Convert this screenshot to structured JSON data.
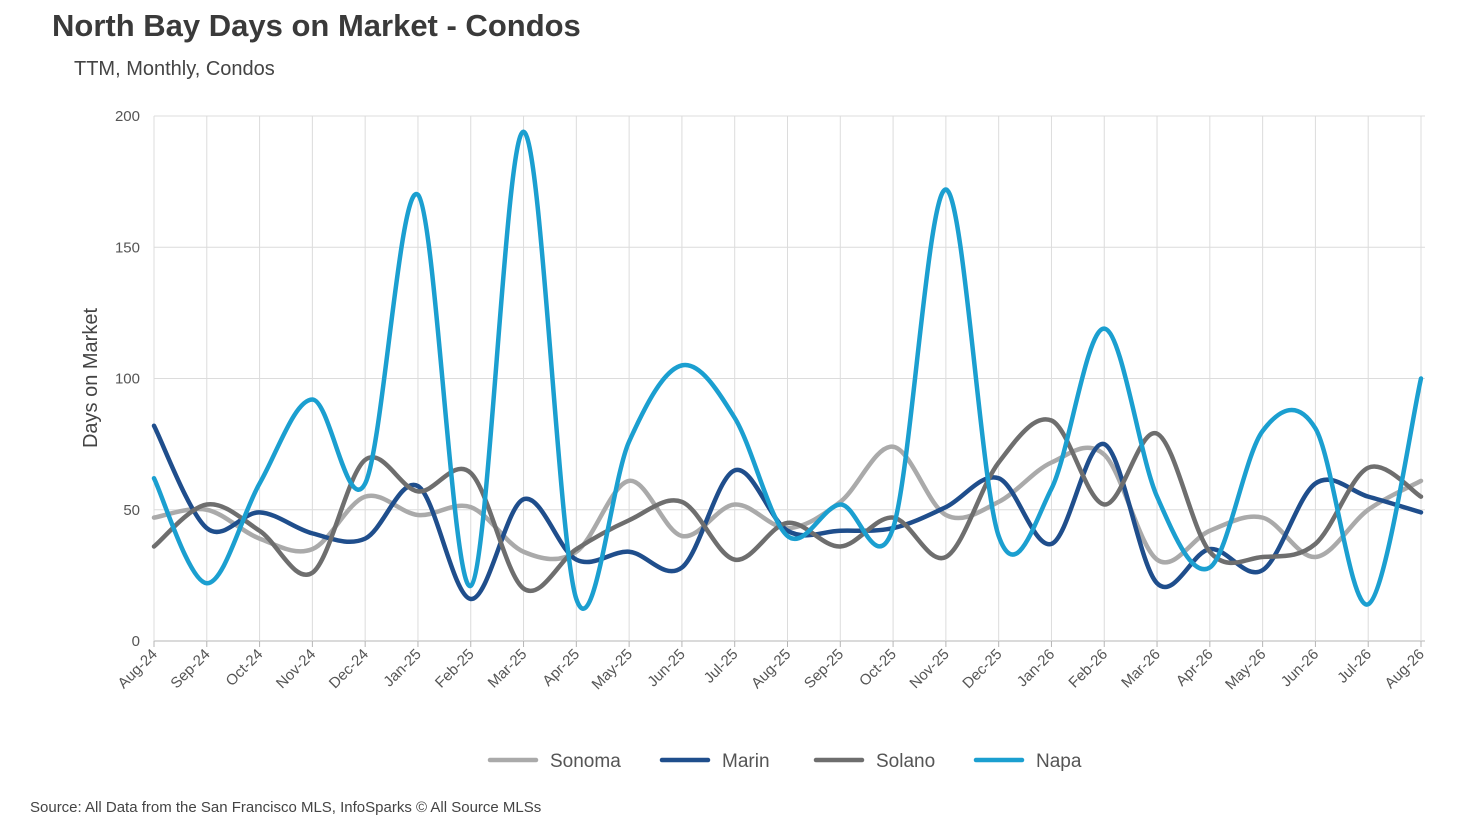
{
  "title": "North Bay Days on Market - Condos",
  "subtitle": "TTM, Monthly, Condos",
  "source": "Source: All Data from the San Francisco MLS, InfoSparks © All Source MLSs",
  "chart_data": {
    "type": "line",
    "ylabel": "Days on Market",
    "xlabel": "",
    "ylim": [
      0,
      200
    ],
    "yticks": [
      0,
      50,
      100,
      150,
      200
    ],
    "grid": true,
    "legend_position": "bottom",
    "categories": [
      "Aug-24",
      "Sep-24",
      "Oct-24",
      "Nov-24",
      "Dec-24",
      "Jan-25",
      "Feb-25",
      "Mar-25",
      "Apr-25",
      "May-25",
      "Jun-25",
      "Jul-25",
      "Aug-25",
      "Sep-25",
      "Oct-25",
      "Nov-25",
      "Dec-25",
      "Jan-26",
      "Feb-26",
      "Mar-26",
      "Apr-26",
      "May-26",
      "Jun-26",
      "Jul-26",
      "Aug-26"
    ],
    "series": [
      {
        "name": "Sonoma",
        "color": "#aaaaaa",
        "values": [
          47,
          50,
          39,
          35,
          55,
          48,
          51,
          34,
          34,
          61,
          40,
          52,
          43,
          53,
          74,
          48,
          53,
          68,
          71,
          31,
          42,
          47,
          32,
          50,
          61
        ]
      },
      {
        "name": "Marin",
        "color": "#1f4e8c",
        "values": [
          82,
          43,
          49,
          41,
          39,
          59,
          16,
          54,
          31,
          34,
          28,
          65,
          42,
          42,
          43,
          51,
          62,
          37,
          75,
          22,
          35,
          27,
          60,
          55,
          49
        ]
      },
      {
        "name": "Solano",
        "color": "#6e6e6e",
        "values": [
          36,
          52,
          42,
          26,
          69,
          57,
          64,
          20,
          35,
          46,
          53,
          31,
          45,
          36,
          47,
          32,
          68,
          84,
          52,
          79,
          34,
          32,
          37,
          66,
          55
        ]
      },
      {
        "name": "Napa",
        "color": "#1b9fd0",
        "values": [
          62,
          22,
          60,
          92,
          60,
          170,
          21,
          194,
          16,
          76,
          105,
          85,
          40,
          52,
          43,
          172,
          40,
          58,
          119,
          55,
          28,
          80,
          81,
          14,
          100
        ]
      }
    ]
  }
}
